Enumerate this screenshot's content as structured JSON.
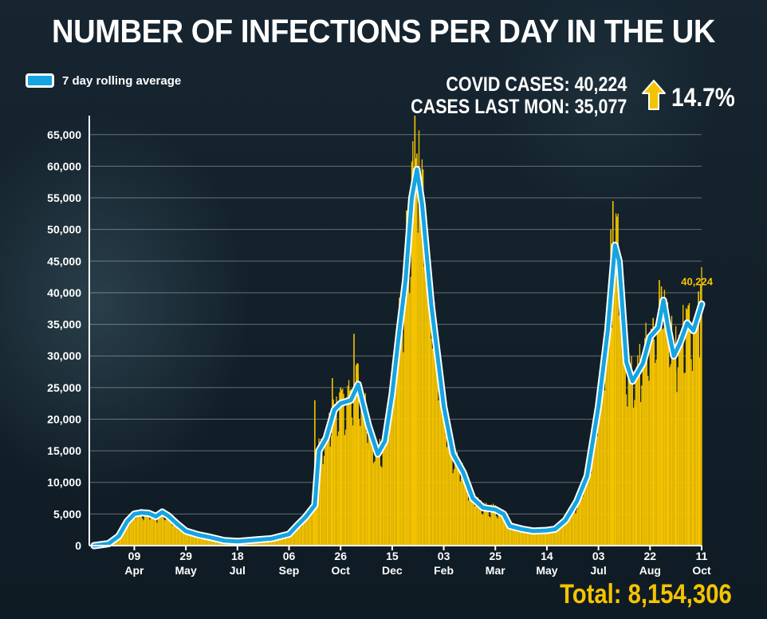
{
  "header": {
    "title": "NUMBER OF INFECTIONS PER DAY IN THE UK"
  },
  "legend": {
    "label": "7 day rolling average",
    "color": "#15a4e0"
  },
  "stats": {
    "covid_cases": "COVID CASES: 40,224",
    "cases_last_mon": "CASES LAST MON: 35,077",
    "change_pct": "14.7%",
    "arrow_icon": "up-arrow-icon",
    "arrow_color": "#f5c400"
  },
  "footer": {
    "total": "Total: 8,154,306"
  },
  "chart_data": {
    "type": "bar",
    "bar_color": "#f5c400",
    "line_color": "#15a4e0",
    "ylim": [
      0,
      68000
    ],
    "yticks": [
      {
        "label": "0",
        "value": 0
      },
      {
        "label": "5,000",
        "value": 5000
      },
      {
        "label": "10,000",
        "value": 10000
      },
      {
        "label": "15,000",
        "value": 15000
      },
      {
        "label": "20,000",
        "value": 20000
      },
      {
        "label": "25,000",
        "value": 25000
      },
      {
        "label": "30,000",
        "value": 30000
      },
      {
        "label": "35,000",
        "value": 35000
      },
      {
        "label": "40,000",
        "value": 40000
      },
      {
        "label": "45,000",
        "value": 45000
      },
      {
        "label": "50,000",
        "value": 50000
      },
      {
        "label": "55,000",
        "value": 55000
      },
      {
        "label": "60,000",
        "value": 60000
      },
      {
        "label": "65,000",
        "value": 65000
      }
    ],
    "x_start": "2020-03-01",
    "x_end": "2021-10-11",
    "xticks": [
      {
        "date": "2020-04-09",
        "day": "09",
        "month": "Apr"
      },
      {
        "date": "2020-05-29",
        "day": "29",
        "month": "May"
      },
      {
        "date": "2020-07-18",
        "day": "18",
        "month": "Jul"
      },
      {
        "date": "2020-09-06",
        "day": "06",
        "month": "Sep"
      },
      {
        "date": "2020-10-26",
        "day": "26",
        "month": "Oct"
      },
      {
        "date": "2020-12-15",
        "day": "15",
        "month": "Dec"
      },
      {
        "date": "2021-02-03",
        "day": "03",
        "month": "Feb"
      },
      {
        "date": "2021-03-25",
        "day": "25",
        "month": "Mar"
      },
      {
        "date": "2021-05-14",
        "day": "14",
        "month": "May"
      },
      {
        "date": "2021-07-03",
        "day": "03",
        "month": "Jul"
      },
      {
        "date": "2021-08-22",
        "day": "22",
        "month": "Aug"
      },
      {
        "date": "2021-10-11",
        "day": "11",
        "month": "Oct"
      }
    ],
    "rolling_average": [
      [
        "2020-03-01",
        0
      ],
      [
        "2020-03-15",
        300
      ],
      [
        "2020-03-25",
        1500
      ],
      [
        "2020-04-02",
        3800
      ],
      [
        "2020-04-09",
        5000
      ],
      [
        "2020-04-16",
        5200
      ],
      [
        "2020-04-23",
        5100
      ],
      [
        "2020-04-30",
        4600
      ],
      [
        "2020-05-06",
        5300
      ],
      [
        "2020-05-12",
        4700
      ],
      [
        "2020-05-20",
        3500
      ],
      [
        "2020-05-29",
        2300
      ],
      [
        "2020-06-10",
        1700
      ],
      [
        "2020-06-22",
        1300
      ],
      [
        "2020-07-05",
        800
      ],
      [
        "2020-07-18",
        650
      ],
      [
        "2020-08-05",
        900
      ],
      [
        "2020-08-20",
        1100
      ],
      [
        "2020-09-06",
        1800
      ],
      [
        "2020-09-14",
        3200
      ],
      [
        "2020-09-22",
        4500
      ],
      [
        "2020-10-01",
        6400
      ],
      [
        "2020-10-05",
        15000
      ],
      [
        "2020-10-12",
        17000
      ],
      [
        "2020-10-20",
        21500
      ],
      [
        "2020-10-26",
        22500
      ],
      [
        "2020-11-05",
        23000
      ],
      [
        "2020-11-12",
        25500
      ],
      [
        "2020-11-22",
        19000
      ],
      [
        "2020-12-01",
        14500
      ],
      [
        "2020-12-08",
        16500
      ],
      [
        "2020-12-15",
        24000
      ],
      [
        "2020-12-22",
        34000
      ],
      [
        "2020-12-28",
        42000
      ],
      [
        "2021-01-03",
        55000
      ],
      [
        "2021-01-08",
        59500
      ],
      [
        "2021-01-13",
        54000
      ],
      [
        "2021-01-22",
        38000
      ],
      [
        "2021-02-03",
        22000
      ],
      [
        "2021-02-12",
        14500
      ],
      [
        "2021-02-22",
        11500
      ],
      [
        "2021-03-03",
        7500
      ],
      [
        "2021-03-13",
        6000
      ],
      [
        "2021-03-25",
        5700
      ],
      [
        "2021-04-02",
        5000
      ],
      [
        "2021-04-08",
        3100
      ],
      [
        "2021-04-20",
        2600
      ],
      [
        "2021-05-01",
        2300
      ],
      [
        "2021-05-14",
        2400
      ],
      [
        "2021-05-22",
        2600
      ],
      [
        "2021-06-01",
        4000
      ],
      [
        "2021-06-12",
        7000
      ],
      [
        "2021-06-22",
        11000
      ],
      [
        "2021-07-03",
        22000
      ],
      [
        "2021-07-12",
        34000
      ],
      [
        "2021-07-19",
        47500
      ],
      [
        "2021-07-23",
        45000
      ],
      [
        "2021-07-30",
        29000
      ],
      [
        "2021-08-05",
        26000
      ],
      [
        "2021-08-15",
        28800
      ],
      [
        "2021-08-22",
        33000
      ],
      [
        "2021-08-30",
        34500
      ],
      [
        "2021-09-04",
        38800
      ],
      [
        "2021-09-09",
        34000
      ],
      [
        "2021-09-14",
        30000
      ],
      [
        "2021-09-20",
        32000
      ],
      [
        "2021-09-27",
        35200
      ],
      [
        "2021-10-03",
        34000
      ],
      [
        "2021-10-11",
        38200
      ]
    ],
    "spikes": [
      [
        "2020-10-01",
        23000
      ],
      [
        "2020-10-03",
        12000
      ],
      [
        "2020-10-18",
        26500
      ],
      [
        "2020-10-26",
        25000
      ],
      [
        "2020-11-08",
        33500
      ],
      [
        "2020-11-12",
        27000
      ],
      [
        "2020-11-22",
        15000
      ],
      [
        "2020-12-22",
        36000
      ],
      [
        "2020-12-29",
        53000
      ],
      [
        "2021-01-04",
        61000
      ],
      [
        "2021-01-06",
        68000
      ],
      [
        "2021-01-08",
        62000
      ],
      [
        "2021-01-20",
        40000
      ],
      [
        "2021-07-15",
        50000
      ],
      [
        "2021-07-17",
        54500
      ],
      [
        "2021-08-08",
        22000
      ],
      [
        "2021-08-25",
        36000
      ],
      [
        "2021-08-31",
        42000
      ],
      [
        "2021-09-02",
        41000
      ],
      [
        "2021-09-08",
        38500
      ],
      [
        "2021-09-16",
        27500
      ],
      [
        "2021-09-28",
        38000
      ],
      [
        "2021-10-08",
        40200
      ]
    ],
    "last_value_label": "40,224"
  }
}
